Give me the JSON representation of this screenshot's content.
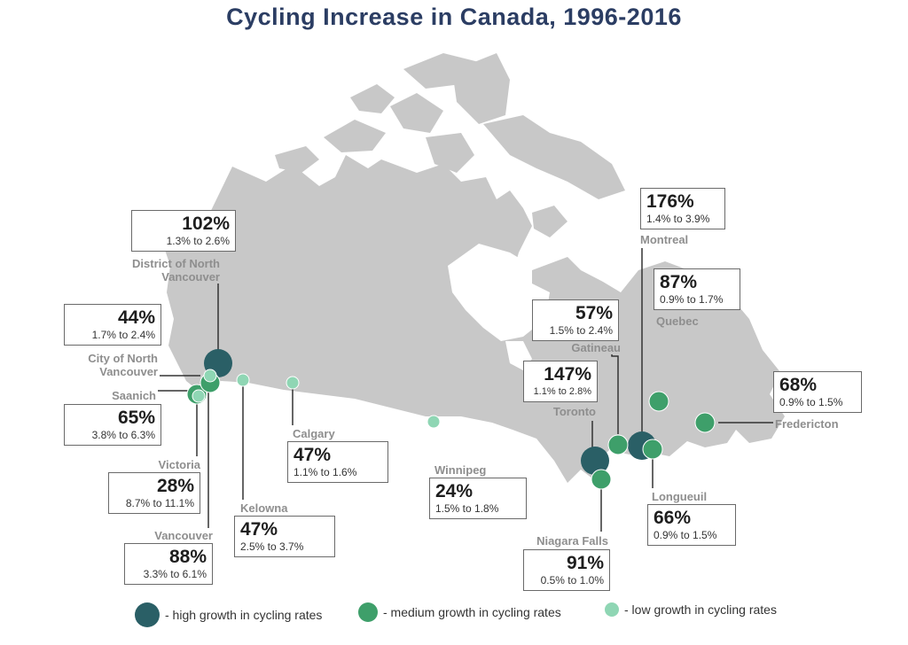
{
  "title": "Cycling Increase in Canada, 1996-2016",
  "colors": {
    "high": "#2a5f66",
    "medium": "#3e9f6a",
    "low": "#8fd6b4",
    "land": "#c8c8c8"
  },
  "cities": [
    {
      "id": "dnv",
      "name": "District of North Vancouver",
      "name_lines": [
        "District of North",
        "Vancouver"
      ],
      "pct": "102%",
      "range": "1.3% to 2.6%",
      "growth": "high"
    },
    {
      "id": "cnv",
      "name": "City of North Vancouver",
      "name_lines": [
        "City of North",
        "Vancouver"
      ],
      "pct": "44%",
      "range": "1.7% to 2.4%",
      "growth": "low"
    },
    {
      "id": "saanich",
      "name": "Saanich",
      "name_lines": [
        "Saanich"
      ],
      "pct": "65%",
      "range": "3.8% to 6.3%",
      "growth": "medium"
    },
    {
      "id": "victoria",
      "name": "Victoria",
      "name_lines": [
        "Victoria"
      ],
      "pct": "28%",
      "range": "8.7% to 11.1%",
      "growth": "low"
    },
    {
      "id": "vancouver",
      "name": "Vancouver",
      "name_lines": [
        "Vancouver"
      ],
      "pct": "88%",
      "range": "3.3% to 6.1%",
      "growth": "medium"
    },
    {
      "id": "kelowna",
      "name": "Kelowna",
      "name_lines": [
        "Kelowna"
      ],
      "pct": "47%",
      "range": "2.5% to 3.7%",
      "growth": "low"
    },
    {
      "id": "calgary",
      "name": "Calgary",
      "name_lines": [
        "Calgary"
      ],
      "pct": "47%",
      "range": "1.1% to 1.6%",
      "growth": "low"
    },
    {
      "id": "winnipeg",
      "name": "Winnipeg",
      "name_lines": [
        "Winnipeg"
      ],
      "pct": "24%",
      "range": "1.5% to 1.8%",
      "growth": "low"
    },
    {
      "id": "toronto",
      "name": "Toronto",
      "name_lines": [
        "Toronto"
      ],
      "pct": "147%",
      "range": "1.1% to 2.8%",
      "growth": "high"
    },
    {
      "id": "niagara",
      "name": "Niagara Falls",
      "name_lines": [
        "Niagara Falls"
      ],
      "pct": "91%",
      "range": "0.5% to 1.0%",
      "growth": "medium"
    },
    {
      "id": "gatineau",
      "name": "Gatineau",
      "name_lines": [
        "Gatineau"
      ],
      "pct": "57%",
      "range": "1.5% to 2.4%",
      "growth": "medium"
    },
    {
      "id": "montreal",
      "name": "Montreal",
      "name_lines": [
        "Montreal"
      ],
      "pct": "176%",
      "range": "1.4% to 3.9%",
      "growth": "high"
    },
    {
      "id": "longueuil",
      "name": "Longueuil",
      "name_lines": [
        "Longueuil"
      ],
      "pct": "66%",
      "range": "0.9% to 1.5%",
      "growth": "medium"
    },
    {
      "id": "quebec",
      "name": "Quebec",
      "name_lines": [
        "Quebec"
      ],
      "pct": "87%",
      "range": "0.9% to 1.7%",
      "growth": "medium"
    },
    {
      "id": "fredericton",
      "name": "Fredericton",
      "name_lines": [
        "Fredericton"
      ],
      "pct": "68%",
      "range": "0.9% to 1.5%",
      "growth": "medium"
    }
  ],
  "legend": [
    {
      "growth": "high",
      "label": "- high growth in cycling rates"
    },
    {
      "growth": "medium",
      "label": "- medium growth in cycling rates"
    },
    {
      "growth": "low",
      "label": "- low growth in cycling rates"
    }
  ]
}
